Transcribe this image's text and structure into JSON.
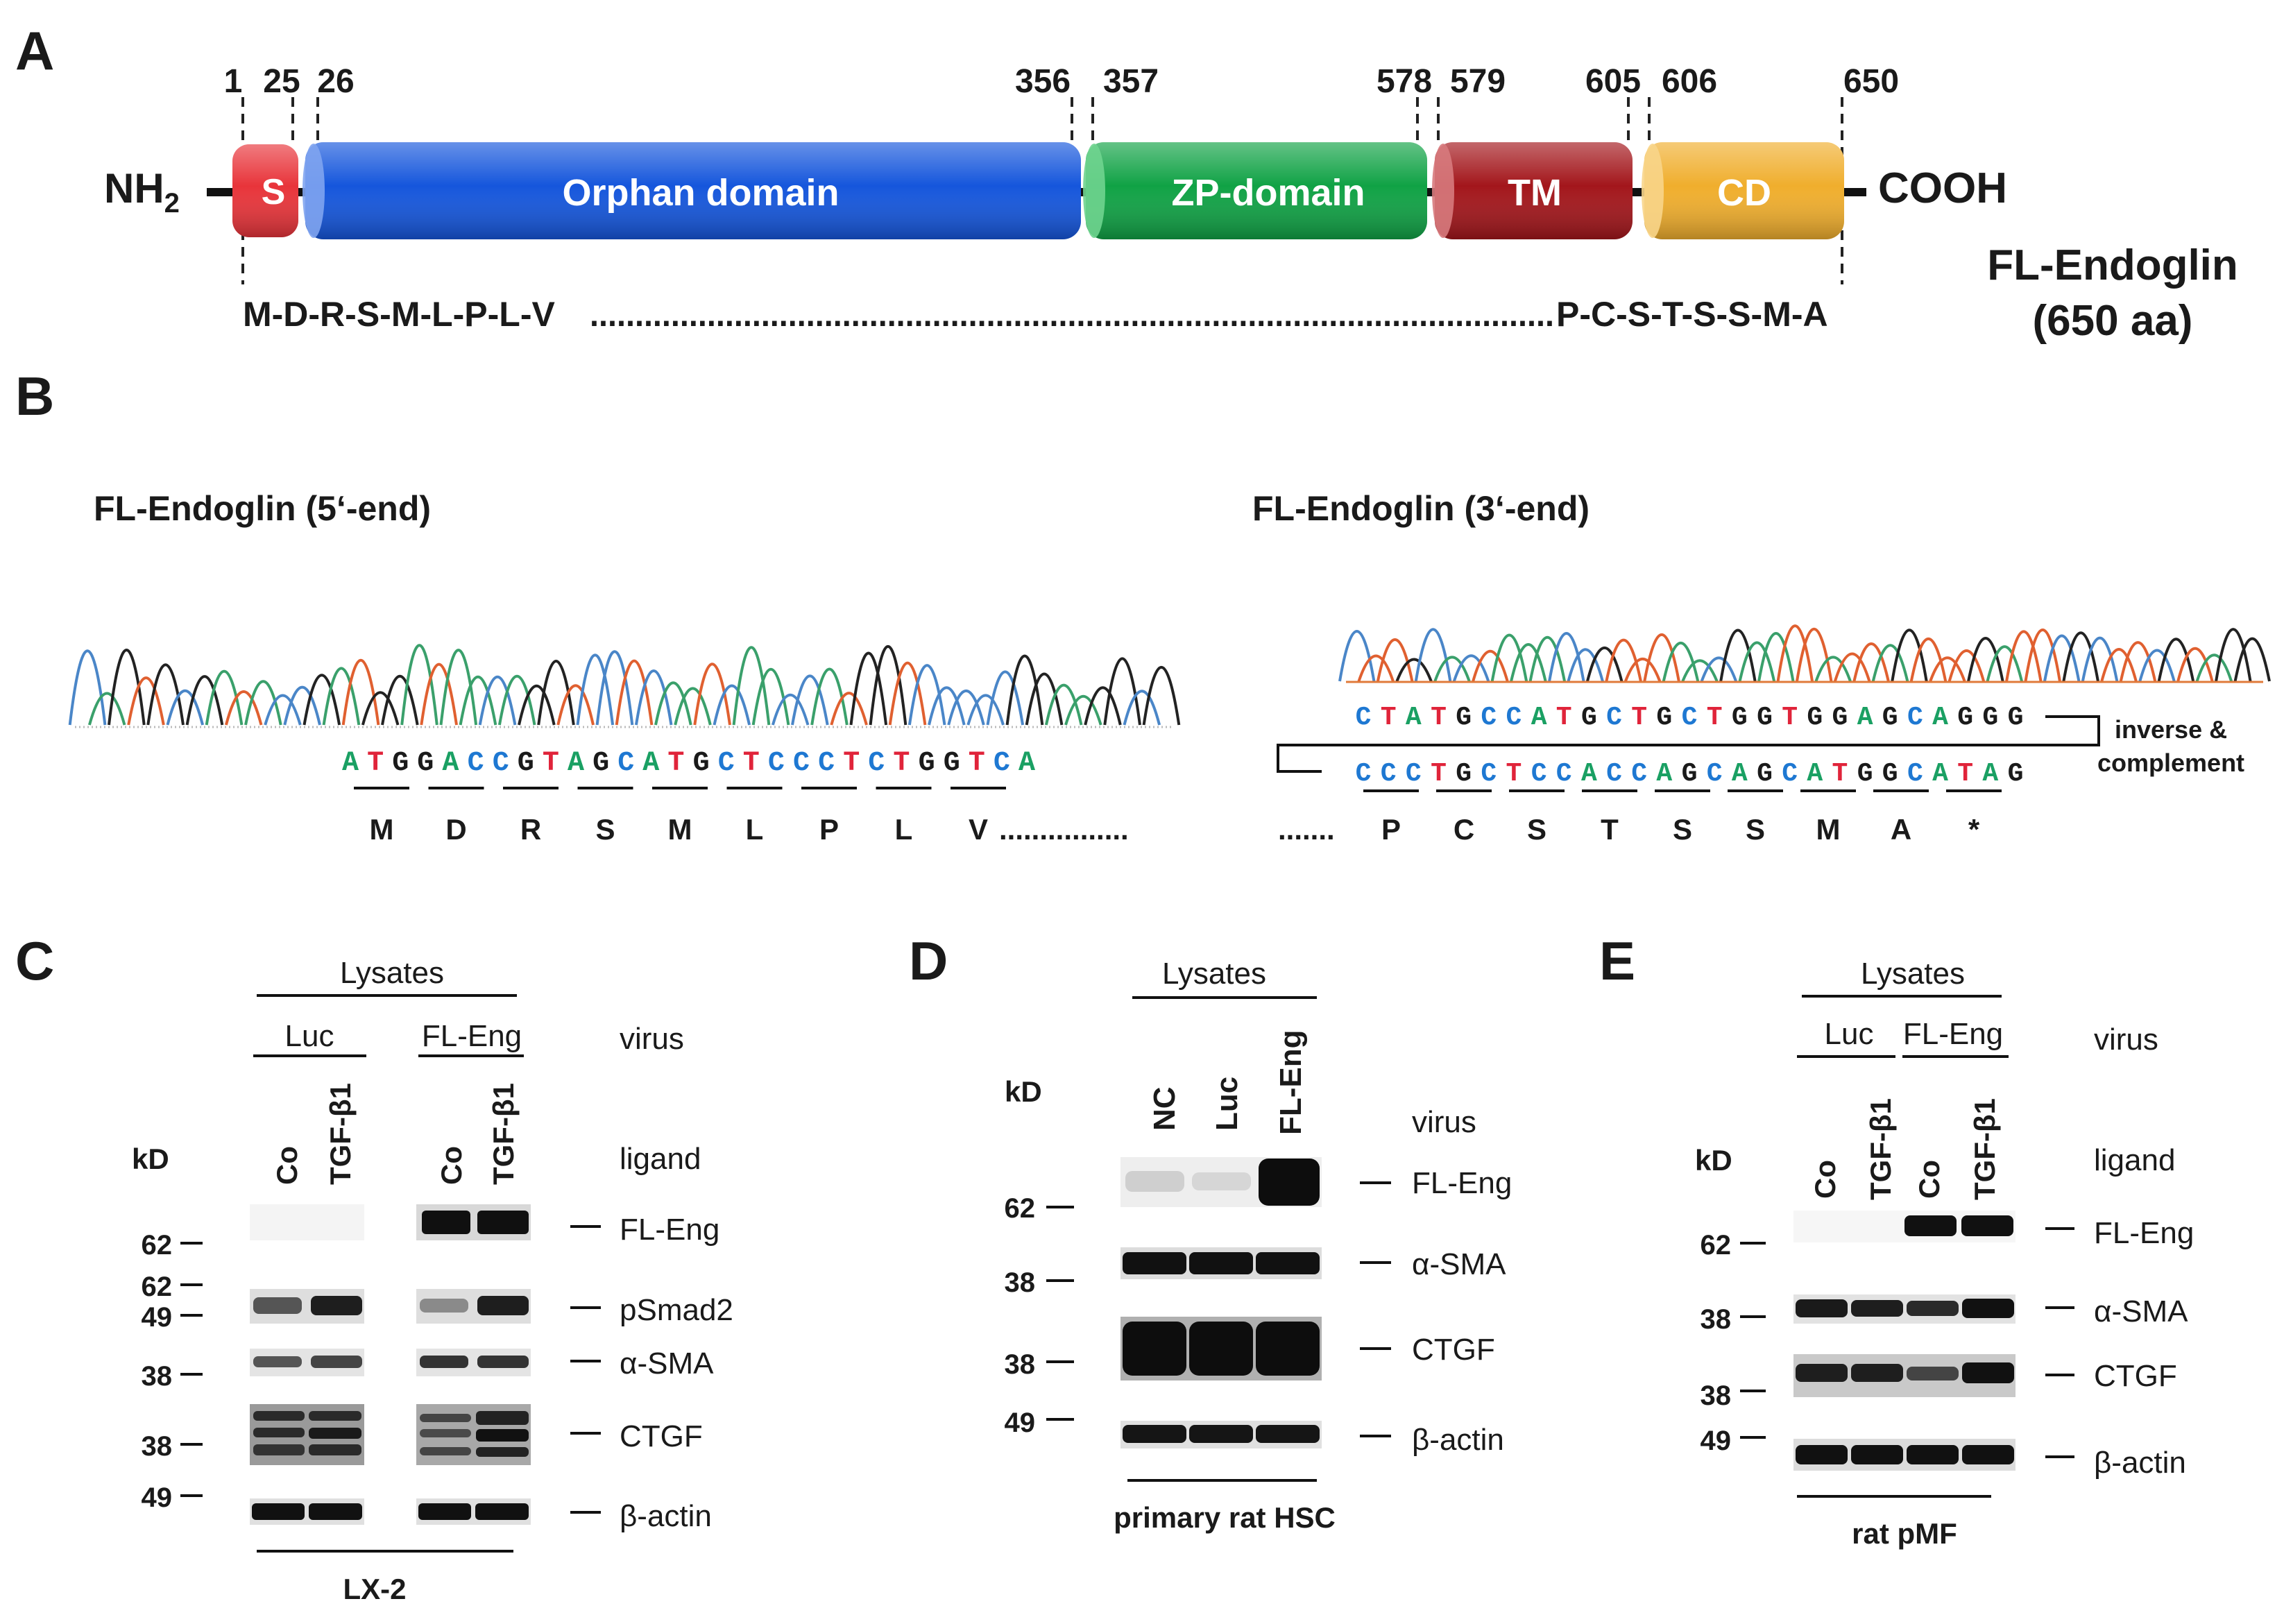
{
  "panelA": {
    "letter": "A",
    "nterm": "NH",
    "nterm_sub": "2",
    "cterm": "COOH",
    "title": "FL-Endoglin",
    "subtitle": "(650 aa)",
    "positions": [
      "1",
      "25",
      "26",
      "356",
      "357",
      "578",
      "579",
      "605",
      "606",
      "650"
    ],
    "domains": [
      {
        "label": "S",
        "color": "#e8343a"
      },
      {
        "label": "Orphan domain",
        "color": "#1556dc"
      },
      {
        "label": "ZP-domain",
        "color": "#10a245"
      },
      {
        "label": "TM",
        "color": "#a3161b"
      },
      {
        "label": "CD",
        "color": "#f0ae2d"
      }
    ],
    "seq_start": "M-D-R-S-M-L-P-L-V",
    "seq_dots": "...........................................................................................................",
    "seq_end": "P-C-S-T-S-S-M-A"
  },
  "panelB": {
    "letter": "B",
    "left_title": "FL-Endoglin (5‘-end)",
    "right_title": "FL-Endoglin (3‘-end)",
    "left_seq": "ATGGACCGTAGCATGCTCCCTCTGGTCA",
    "left_aa": [
      "M",
      "D",
      "R",
      "S",
      "M",
      "L",
      "P",
      "L",
      "V"
    ],
    "left_dots": "................",
    "right_seq_top": "CTATGCCATGCTGCTGGTGGAGCAGGG",
    "right_seq_bottom": "CCCTGCTCCACCAGCAGCATGGCATAG",
    "right_aa": [
      "P",
      "C",
      "S",
      "T",
      "S",
      "S",
      "M",
      "A",
      "*"
    ],
    "right_dots": ".......",
    "note_line1": "inverse &",
    "note_line2": "complement",
    "base_colors": {
      "A": "#1aa063",
      "T": "#e0243a",
      "G": "#1a1a1a",
      "C": "#1e78d2"
    }
  },
  "panelC": {
    "letter": "C",
    "header": "Lysates",
    "groups": [
      "Luc",
      "FL-Eng"
    ],
    "lanes": [
      "Co",
      "TGF-β1",
      "Co",
      "TGF-β1"
    ],
    "virus_label": "virus",
    "ligand_label": "ligand",
    "kd_label": "kD",
    "markers": [
      "62",
      "62",
      "49",
      "38",
      "38",
      "49"
    ],
    "bands": [
      "FL-Eng",
      "pSmad2",
      "α-SMA",
      "CTGF",
      "β-actin"
    ],
    "footer": "LX-2"
  },
  "panelD": {
    "letter": "D",
    "header": "Lysates",
    "lanes": [
      "NC",
      "Luc",
      "FL-Eng"
    ],
    "virus_label": "virus",
    "kd_label": "kD",
    "markers": [
      "62",
      "38",
      "38",
      "49"
    ],
    "bands": [
      "FL-Eng",
      "α-SMA",
      "CTGF",
      "β-actin"
    ],
    "footer": "primary rat HSC"
  },
  "panelE": {
    "letter": "E",
    "header": "Lysates",
    "groups": [
      "Luc",
      "FL-Eng"
    ],
    "lanes": [
      "Co",
      "TGF-β1",
      "Co",
      "TGF-β1"
    ],
    "virus_label": "virus",
    "ligand_label": "ligand",
    "kd_label": "kD",
    "markers": [
      "62",
      "38",
      "38",
      "49"
    ],
    "bands": [
      "FL-Eng",
      "α-SMA",
      "CTGF",
      "β-actin"
    ],
    "footer": "rat pMF"
  }
}
